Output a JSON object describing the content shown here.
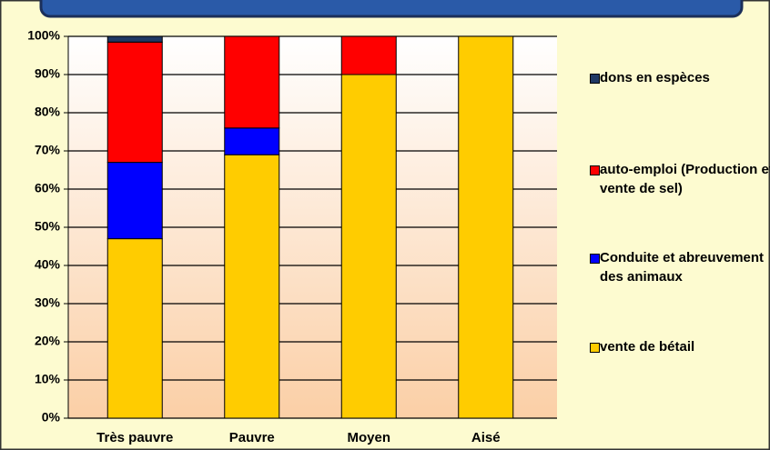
{
  "chart_data": {
    "type": "stacked_bar",
    "categories": [
      "Très pauvre",
      "Pauvre",
      "Moyen",
      "Aisé"
    ],
    "series": [
      {
        "name": "dons en espèces",
        "color": "#1f3864",
        "values": [
          1.5,
          0,
          0,
          0
        ]
      },
      {
        "name": "auto-emploi (Production et vente de sel)",
        "color": "#ff0000",
        "values": [
          31.5,
          24,
          10,
          0
        ]
      },
      {
        "name": "Conduite et abreuvement des animaux",
        "color": "#0000ff",
        "values": [
          20,
          7,
          0,
          0
        ]
      },
      {
        "name": "vente de bétail",
        "color": "#ffcc00",
        "values": [
          47,
          69,
          90,
          100
        ]
      }
    ],
    "ylim": [
      0,
      100
    ],
    "yticks": [
      {
        "value": 0,
        "label": "0%"
      },
      {
        "value": 10,
        "label": "10%"
      },
      {
        "value": 20,
        "label": "20%"
      },
      {
        "value": 30,
        "label": "30%"
      },
      {
        "value": 40,
        "label": "40%"
      },
      {
        "value": 50,
        "label": "50%"
      },
      {
        "value": 60,
        "label": "60%"
      },
      {
        "value": 70,
        "label": "70%"
      },
      {
        "value": 80,
        "label": "80%"
      },
      {
        "value": 90,
        "label": "90%"
      },
      {
        "value": 100,
        "label": "100%"
      }
    ],
    "grid": true,
    "legend": "right"
  }
}
